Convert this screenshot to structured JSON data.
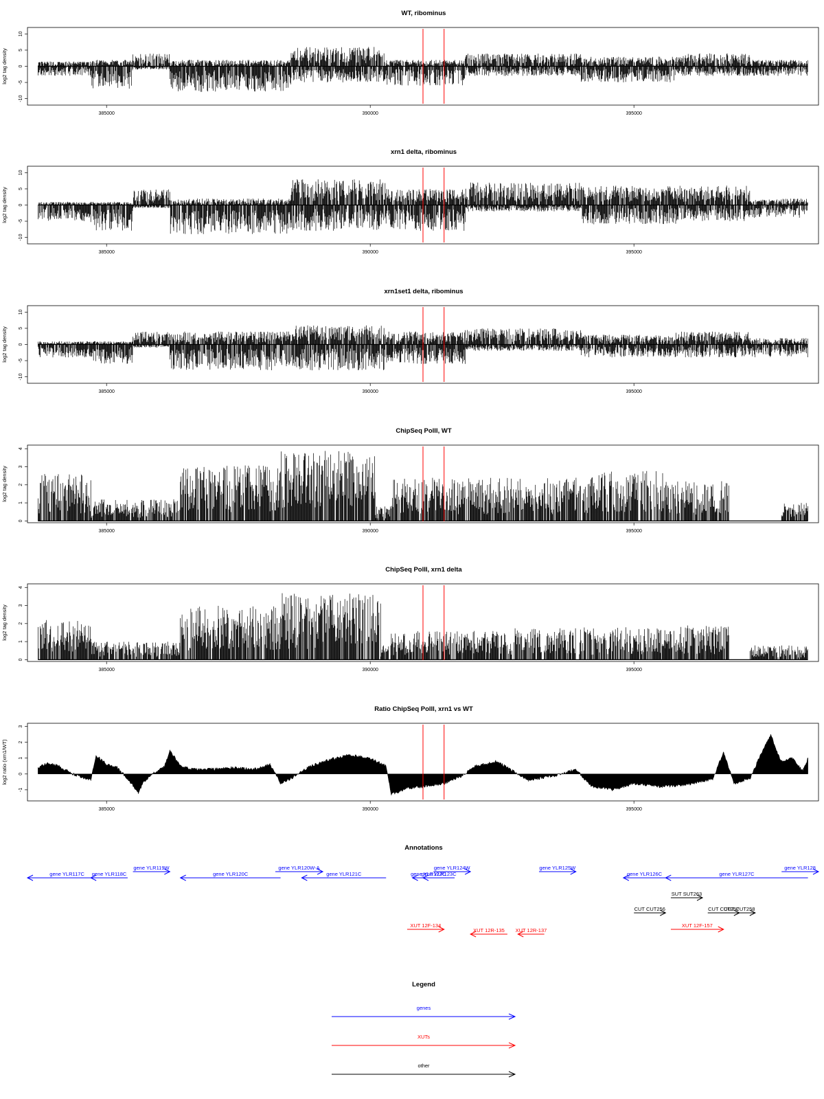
{
  "chart_data": [
    {
      "type": "bar",
      "title": "WT, ribominus",
      "ylabel": "log2 tag density",
      "xlim": [
        383500,
        398500
      ],
      "ylim": [
        -12,
        12
      ],
      "yticks": [
        -10,
        -5,
        0,
        5,
        10
      ],
      "xticks": [
        385000,
        390000,
        395000
      ],
      "markers": [
        391000,
        391400
      ],
      "segments": [
        {
          "x": [
            383700,
            384700
          ],
          "lo": -3,
          "hi": 1.5
        },
        {
          "x": [
            384700,
            385500
          ],
          "lo": -7,
          "hi": 2
        },
        {
          "x": [
            385500,
            386200
          ],
          "lo": -1,
          "hi": 4
        },
        {
          "x": [
            386200,
            388500
          ],
          "lo": -8,
          "hi": 2
        },
        {
          "x": [
            388500,
            390300
          ],
          "lo": -5,
          "hi": 6
        },
        {
          "x": [
            390300,
            391800
          ],
          "lo": -6,
          "hi": 2
        },
        {
          "x": [
            391800,
            394000
          ],
          "lo": -3,
          "hi": 4
        },
        {
          "x": [
            394000,
            395800
          ],
          "lo": -5,
          "hi": 3
        },
        {
          "x": [
            395800,
            397200
          ],
          "lo": -3,
          "hi": 4
        },
        {
          "x": [
            397200,
            398300
          ],
          "lo": -3,
          "hi": 2
        }
      ]
    },
    {
      "type": "bar",
      "title": "xrn1 delta, ribominus",
      "ylabel": "log2 tag density",
      "xlim": [
        383500,
        398500
      ],
      "ylim": [
        -12,
        12
      ],
      "yticks": [
        -10,
        -5,
        0,
        5,
        10
      ],
      "xticks": [
        385000,
        390000,
        395000
      ],
      "markers": [
        391000,
        391400
      ],
      "segments": [
        {
          "x": [
            383700,
            384700
          ],
          "lo": -5,
          "hi": 1
        },
        {
          "x": [
            384700,
            385500
          ],
          "lo": -8,
          "hi": 1
        },
        {
          "x": [
            385500,
            386200
          ],
          "lo": -1,
          "hi": 5
        },
        {
          "x": [
            386200,
            388500
          ],
          "lo": -9,
          "hi": 2
        },
        {
          "x": [
            388500,
            390300
          ],
          "lo": -8,
          "hi": 8
        },
        {
          "x": [
            390300,
            391800
          ],
          "lo": -8,
          "hi": 5
        },
        {
          "x": [
            391800,
            394000
          ],
          "lo": -2,
          "hi": 7
        },
        {
          "x": [
            394000,
            395800
          ],
          "lo": -6,
          "hi": 6
        },
        {
          "x": [
            395800,
            397200
          ],
          "lo": -5,
          "hi": 6
        },
        {
          "x": [
            397200,
            398300
          ],
          "lo": -4,
          "hi": 2
        }
      ]
    },
    {
      "type": "bar",
      "title": "xrn1set1 delta, ribominus",
      "ylabel": "log2 tag density",
      "xlim": [
        383500,
        398500
      ],
      "ylim": [
        -12,
        12
      ],
      "yticks": [
        -10,
        -5,
        0,
        5,
        10
      ],
      "xticks": [
        385000,
        390000,
        395000
      ],
      "markers": [
        391000,
        391400
      ],
      "segments": [
        {
          "x": [
            383700,
            384700
          ],
          "lo": -4,
          "hi": 1
        },
        {
          "x": [
            384700,
            385500
          ],
          "lo": -6,
          "hi": 1
        },
        {
          "x": [
            385500,
            386200
          ],
          "lo": -1,
          "hi": 4
        },
        {
          "x": [
            386200,
            388500
          ],
          "lo": -8,
          "hi": 4
        },
        {
          "x": [
            388500,
            390300
          ],
          "lo": -8,
          "hi": 6
        },
        {
          "x": [
            390300,
            391800
          ],
          "lo": -6,
          "hi": 4
        },
        {
          "x": [
            391800,
            394000
          ],
          "lo": -2,
          "hi": 5
        },
        {
          "x": [
            394000,
            395800
          ],
          "lo": -4,
          "hi": 3
        },
        {
          "x": [
            395800,
            397200
          ],
          "lo": -4,
          "hi": 4
        },
        {
          "x": [
            397200,
            398300
          ],
          "lo": -4,
          "hi": 2
        }
      ]
    },
    {
      "type": "bar",
      "title": "ChipSeq PolII, WT",
      "ylabel": "log2 tag density",
      "xlim": [
        383500,
        398500
      ],
      "ylim": [
        -0.1,
        4.2
      ],
      "yticks": [
        0,
        1,
        2,
        3,
        4
      ],
      "xticks": [
        385000,
        390000,
        395000
      ],
      "markers": [
        391000,
        391400
      ],
      "segments": [
        {
          "x": [
            383700,
            384700
          ],
          "lo": 0,
          "hi": 2.6
        },
        {
          "x": [
            384700,
            386400
          ],
          "lo": 0,
          "hi": 1.2
        },
        {
          "x": [
            386400,
            388300
          ],
          "lo": 0,
          "hi": 3.1
        },
        {
          "x": [
            388300,
            390100
          ],
          "lo": 0,
          "hi": 3.9
        },
        {
          "x": [
            390100,
            390400
          ],
          "lo": 0,
          "hi": 0.8
        },
        {
          "x": [
            390400,
            392600
          ],
          "lo": 0,
          "hi": 2.4
        },
        {
          "x": [
            392600,
            394200
          ],
          "lo": 0,
          "hi": 2.4
        },
        {
          "x": [
            394200,
            395600
          ],
          "lo": 0,
          "hi": 2.8
        },
        {
          "x": [
            395600,
            396800
          ],
          "lo": 0,
          "hi": 2.2
        },
        {
          "x": [
            397800,
            398300
          ],
          "lo": 0,
          "hi": 1.0
        }
      ]
    },
    {
      "type": "bar",
      "title": "ChipSeq PolII, xrn1 delta",
      "ylabel": "log2 tag density",
      "xlim": [
        383500,
        398500
      ],
      "ylim": [
        -0.1,
        4.2
      ],
      "yticks": [
        0,
        1,
        2,
        3,
        4
      ],
      "xticks": [
        385000,
        390000,
        395000
      ],
      "markers": [
        391000,
        391400
      ],
      "segments": [
        {
          "x": [
            383700,
            384700
          ],
          "lo": 0,
          "hi": 2.2
        },
        {
          "x": [
            384700,
            386400
          ],
          "lo": 0,
          "hi": 1.0
        },
        {
          "x": [
            386400,
            388300
          ],
          "lo": 0,
          "hi": 3.0
        },
        {
          "x": [
            388300,
            390200
          ],
          "lo": 0,
          "hi": 3.7
        },
        {
          "x": [
            390200,
            390400
          ],
          "lo": 0,
          "hi": 0.8
        },
        {
          "x": [
            390400,
            392600
          ],
          "lo": 0,
          "hi": 1.6
        },
        {
          "x": [
            392600,
            394200
          ],
          "lo": 0,
          "hi": 1.8
        },
        {
          "x": [
            394200,
            395600
          ],
          "lo": 0,
          "hi": 1.8
        },
        {
          "x": [
            395600,
            396800
          ],
          "lo": 0,
          "hi": 1.9
        },
        {
          "x": [
            397200,
            398300
          ],
          "lo": 0,
          "hi": 0.8
        }
      ]
    },
    {
      "type": "area",
      "title": "Ratio ChipSeq PolII, xrn1 vs WT",
      "ylabel": "log2 ratio (xrn1/WT)",
      "xlim": [
        383500,
        398500
      ],
      "ylim": [
        -1.7,
        3.2
      ],
      "yticks": [
        -1,
        0,
        1,
        2,
        3
      ],
      "xticks": [
        385000,
        390000,
        395000
      ],
      "markers": [
        391000,
        391400
      ],
      "x": [
        383700,
        383900,
        384100,
        384300,
        384500,
        384700,
        384800,
        385000,
        385200,
        385400,
        385600,
        385700,
        385900,
        386100,
        386200,
        386400,
        386600,
        387000,
        387400,
        387800,
        388100,
        388300,
        388500,
        388800,
        389200,
        389600,
        390000,
        390300,
        390400,
        390700,
        391000,
        391400,
        391700,
        392000,
        392400,
        392700,
        393000,
        393500,
        393900,
        394200,
        394600,
        395000,
        395500,
        396000,
        396500,
        396700,
        396900,
        397200,
        397400,
        397600,
        397700,
        397800,
        398000,
        398200,
        398300
      ],
      "y": [
        0.4,
        0.7,
        0.5,
        0.1,
        -0.2,
        -0.4,
        1.2,
        0.6,
        0.4,
        -0.3,
        -1.2,
        -0.5,
        0.1,
        0.5,
        1.5,
        0.5,
        0.3,
        0.3,
        0.4,
        0.3,
        0.6,
        -0.6,
        -0.3,
        0.4,
        0.9,
        1.2,
        1.0,
        0.5,
        -1.3,
        -0.9,
        -0.8,
        -0.6,
        -0.2,
        0.5,
        0.8,
        0.2,
        -0.4,
        -0.1,
        0.3,
        -0.8,
        -1.0,
        -0.6,
        -0.8,
        -0.7,
        -0.3,
        1.4,
        -0.6,
        -0.3,
        1.2,
        2.5,
        1.5,
        0.8,
        1.0,
        0.2,
        1.0
      ]
    }
  ],
  "annotations": {
    "title": "Annotations",
    "items": [
      {
        "label": "gene YLR117C",
        "color": "#0000ff",
        "x0": 383500,
        "x1": 385000,
        "dir": "left",
        "row": 2
      },
      {
        "label": "gene YLR118C",
        "color": "#0000ff",
        "x0": 384700,
        "x1": 385400,
        "dir": "left",
        "row": 2
      },
      {
        "label": "gene YLR119W",
        "color": "#0000ff",
        "x0": 385500,
        "x1": 386200,
        "dir": "right",
        "row": 1
      },
      {
        "label": "gene YLR120C",
        "color": "#0000ff",
        "x0": 386400,
        "x1": 388300,
        "dir": "left",
        "row": 2
      },
      {
        "label": "gene YLR120W-A",
        "color": "#0000ff",
        "x0": 388200,
        "x1": 389100,
        "dir": "right",
        "row": 1
      },
      {
        "label": "gene YLR121C",
        "color": "#0000ff",
        "x0": 388700,
        "x1": 390300,
        "dir": "left",
        "row": 2
      },
      {
        "label": "gene YLR122C",
        "color": "#0000ff",
        "x0": 390800,
        "x1": 391400,
        "dir": "left",
        "row": 2
      },
      {
        "label": "gene YLR123C",
        "color": "#0000ff",
        "x0": 391000,
        "x1": 391600,
        "dir": "left",
        "row": 2
      },
      {
        "label": "gene YLR124W",
        "color": "#0000ff",
        "x0": 391200,
        "x1": 391900,
        "dir": "right",
        "row": 1
      },
      {
        "label": "gene YLR125W",
        "color": "#0000ff",
        "x0": 393200,
        "x1": 393900,
        "dir": "right",
        "row": 1
      },
      {
        "label": "gene YLR126C",
        "color": "#0000ff",
        "x0": 394800,
        "x1": 395600,
        "dir": "left",
        "row": 2
      },
      {
        "label": "gene YLR127C",
        "color": "#0000ff",
        "x0": 395600,
        "x1": 398300,
        "dir": "left",
        "row": 2
      },
      {
        "label": "gene YLR128",
        "color": "#0000ff",
        "x0": 397800,
        "x1": 398500,
        "dir": "right",
        "row": 1
      },
      {
        "label": "SUT SUT263",
        "color": "#000000",
        "x0": 395700,
        "x1": 396300,
        "dir": "right",
        "row": 3
      },
      {
        "label": "CUT CUT256",
        "color": "#000000",
        "x0": 395000,
        "x1": 395600,
        "dir": "right",
        "row": 4
      },
      {
        "label": "CUT CUT257",
        "color": "#000000",
        "x0": 396400,
        "x1": 397000,
        "dir": "right",
        "row": 4
      },
      {
        "label": "CUT CUT258",
        "color": "#000000",
        "x0": 396700,
        "x1": 397300,
        "dir": "right",
        "row": 4
      },
      {
        "label": "XUT 12F-134",
        "color": "#ff0000",
        "x0": 390700,
        "x1": 391400,
        "dir": "right",
        "row": 5
      },
      {
        "label": "XUT 12F-157",
        "color": "#ff0000",
        "x0": 395700,
        "x1": 396700,
        "dir": "right",
        "row": 5
      },
      {
        "label": "XUT 12R-135",
        "color": "#ff0000",
        "x0": 391900,
        "x1": 392600,
        "dir": "left",
        "row": 6
      },
      {
        "label": "XUT 12R-137",
        "color": "#ff0000",
        "x0": 392800,
        "x1": 393300,
        "dir": "left",
        "row": 6
      }
    ]
  },
  "legend": {
    "title": "Legend",
    "entries": [
      {
        "label": "genes",
        "color": "#0000ff"
      },
      {
        "label": "XUTs",
        "color": "#ff0000"
      },
      {
        "label": "other",
        "color": "#000000"
      }
    ]
  }
}
